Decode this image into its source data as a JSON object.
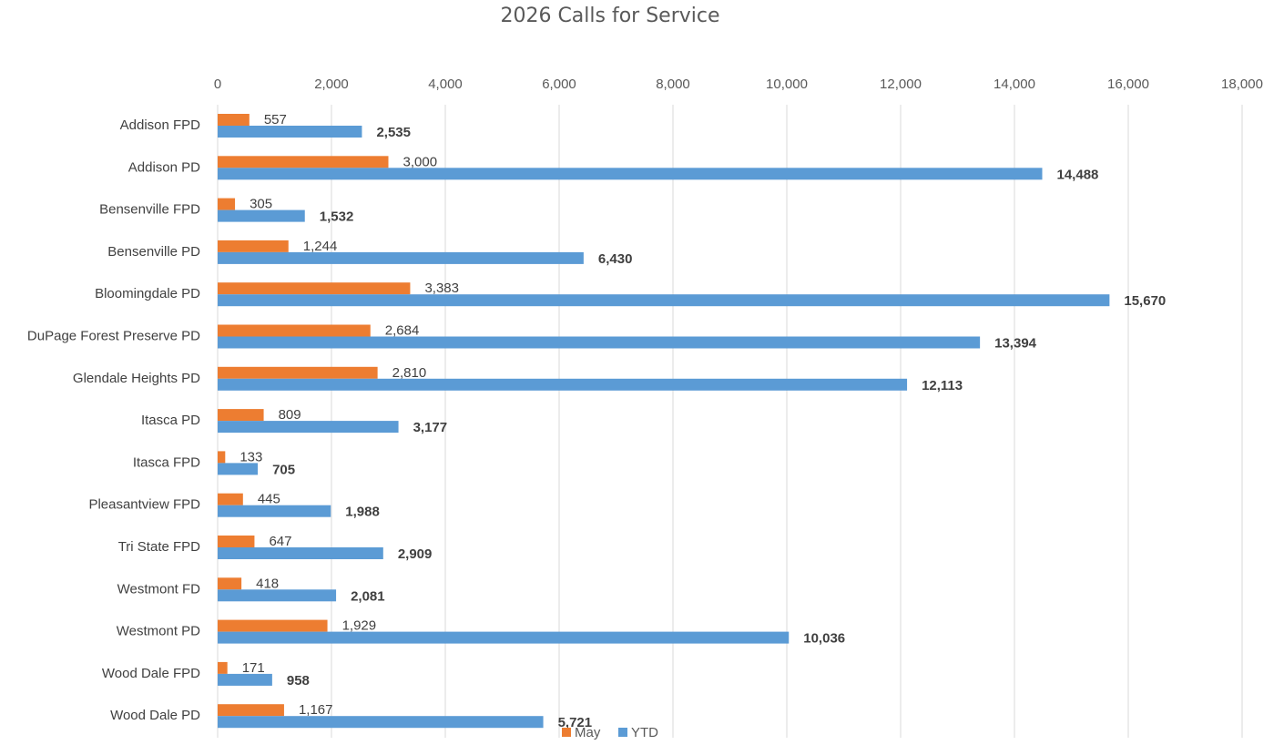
{
  "chart_data": {
    "type": "bar",
    "orientation": "horizontal",
    "title": "2026 Calls for Service",
    "xlabel": "",
    "ylabel": "",
    "xlim": [
      0,
      18000
    ],
    "x_ticks": [
      "0",
      "2,000",
      "4,000",
      "6,000",
      "8,000",
      "10,000",
      "12,000",
      "14,000",
      "16,000",
      "18,000"
    ],
    "axis_position": "top",
    "grid": true,
    "legend": "bottom",
    "categories": [
      "Addison FPD",
      "Addison PD",
      "Bensenville FPD",
      "Bensenville PD",
      "Bloomingdale PD",
      "DuPage Forest Preserve PD",
      "Glendale Heights PD",
      "Itasca PD",
      "Itasca FPD",
      "Pleasantview FPD",
      "Tri State FPD",
      "Westmont FD",
      "Westmont PD",
      "Wood Dale FPD",
      "Wood Dale PD"
    ],
    "series": [
      {
        "name": "May",
        "color": "#ed7d31",
        "values": [
          557,
          3000,
          305,
          1244,
          3383,
          2684,
          2810,
          809,
          133,
          445,
          647,
          418,
          1929,
          171,
          1167
        ],
        "labels": [
          "557",
          "3,000",
          "305",
          "1,244",
          "3,383",
          "2,684",
          "2,810",
          "809",
          "133",
          "445",
          "647",
          "418",
          "1,929",
          "171",
          "1,167"
        ],
        "label_bold": false
      },
      {
        "name": "YTD",
        "color": "#5b9bd5",
        "values": [
          2535,
          14488,
          1532,
          6430,
          15670,
          13394,
          12113,
          3177,
          705,
          1988,
          2909,
          2081,
          10036,
          958,
          5721
        ],
        "labels": [
          "2,535",
          "14,488",
          "1,532",
          "6,430",
          "15,670",
          "13,394",
          "12,113",
          "3,177",
          "705",
          "1,988",
          "2,909",
          "2,081",
          "10,036",
          "958",
          "5,721"
        ],
        "label_bold": true
      }
    ]
  }
}
